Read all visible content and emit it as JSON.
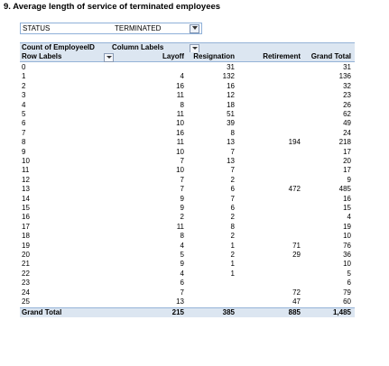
{
  "title": "9. Average length of service of terminated employees",
  "filter": {
    "label": "STATUS",
    "value": "TERMINATED"
  },
  "pivot": {
    "corner": "Count of EmployeeID",
    "col_labels": "Column Labels",
    "row_labels": "Row Labels",
    "columns": [
      "Layoff",
      "Resignation",
      "Retirement",
      "Grand Total"
    ],
    "rows": [
      {
        "label": "0",
        "layoff": "",
        "resignation": "31",
        "retirement": "",
        "total": "31"
      },
      {
        "label": "1",
        "layoff": "4",
        "resignation": "132",
        "retirement": "",
        "total": "136"
      },
      {
        "label": "2",
        "layoff": "16",
        "resignation": "16",
        "retirement": "",
        "total": "32"
      },
      {
        "label": "3",
        "layoff": "11",
        "resignation": "12",
        "retirement": "",
        "total": "23"
      },
      {
        "label": "4",
        "layoff": "8",
        "resignation": "18",
        "retirement": "",
        "total": "26"
      },
      {
        "label": "5",
        "layoff": "11",
        "resignation": "51",
        "retirement": "",
        "total": "62"
      },
      {
        "label": "6",
        "layoff": "10",
        "resignation": "39",
        "retirement": "",
        "total": "49"
      },
      {
        "label": "7",
        "layoff": "16",
        "resignation": "8",
        "retirement": "",
        "total": "24"
      },
      {
        "label": "8",
        "layoff": "11",
        "resignation": "13",
        "retirement": "194",
        "total": "218"
      },
      {
        "label": "9",
        "layoff": "10",
        "resignation": "7",
        "retirement": "",
        "total": "17"
      },
      {
        "label": "10",
        "layoff": "7",
        "resignation": "13",
        "retirement": "",
        "total": "20"
      },
      {
        "label": "11",
        "layoff": "10",
        "resignation": "7",
        "retirement": "",
        "total": "17"
      },
      {
        "label": "12",
        "layoff": "7",
        "resignation": "2",
        "retirement": "",
        "total": "9"
      },
      {
        "label": "13",
        "layoff": "7",
        "resignation": "6",
        "retirement": "472",
        "total": "485"
      },
      {
        "label": "14",
        "layoff": "9",
        "resignation": "7",
        "retirement": "",
        "total": "16"
      },
      {
        "label": "15",
        "layoff": "9",
        "resignation": "6",
        "retirement": "",
        "total": "15"
      },
      {
        "label": "16",
        "layoff": "2",
        "resignation": "2",
        "retirement": "",
        "total": "4"
      },
      {
        "label": "17",
        "layoff": "11",
        "resignation": "8",
        "retirement": "",
        "total": "19"
      },
      {
        "label": "18",
        "layoff": "8",
        "resignation": "2",
        "retirement": "",
        "total": "10"
      },
      {
        "label": "19",
        "layoff": "4",
        "resignation": "1",
        "retirement": "71",
        "total": "76"
      },
      {
        "label": "20",
        "layoff": "5",
        "resignation": "2",
        "retirement": "29",
        "total": "36"
      },
      {
        "label": "21",
        "layoff": "9",
        "resignation": "1",
        "retirement": "",
        "total": "10"
      },
      {
        "label": "22",
        "layoff": "4",
        "resignation": "1",
        "retirement": "",
        "total": "5"
      },
      {
        "label": "23",
        "layoff": "6",
        "resignation": "",
        "retirement": "",
        "total": "6"
      },
      {
        "label": "24",
        "layoff": "7",
        "resignation": "",
        "retirement": "72",
        "total": "79"
      },
      {
        "label": "25",
        "layoff": "13",
        "resignation": "",
        "retirement": "47",
        "total": "60"
      }
    ],
    "grand_total": {
      "label": "Grand Total",
      "layoff": "215",
      "resignation": "385",
      "retirement": "885",
      "total": "1,485"
    }
  }
}
